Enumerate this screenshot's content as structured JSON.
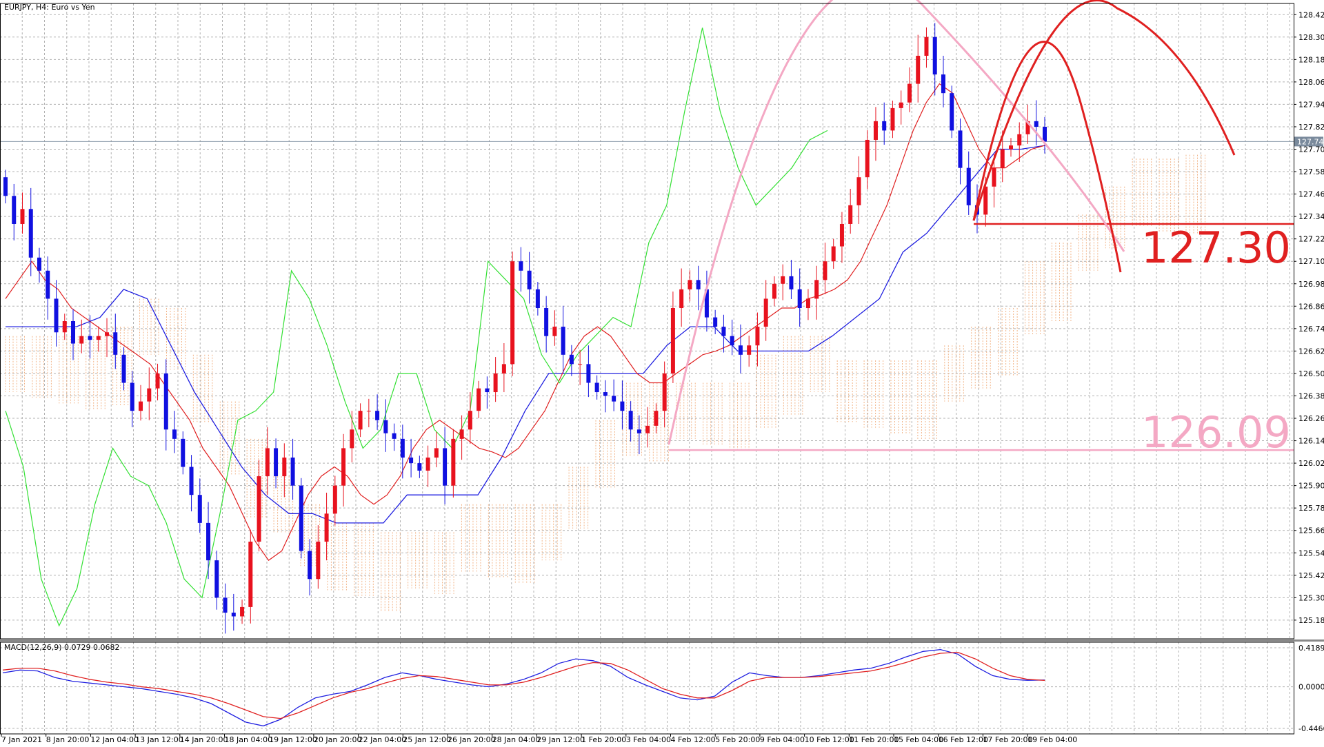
{
  "chart_data": {
    "type": "candlestick",
    "title": "EURJPY, H4:  Euro vs Yen",
    "price_axis": {
      "ylim": [
        125.08,
        128.48
      ],
      "ticks": [
        "128.420",
        "128.300",
        "128.180",
        "128.060",
        "127.940",
        "127.820",
        "127.700",
        "127.580",
        "127.460",
        "127.340",
        "127.220",
        "127.100",
        "126.980",
        "126.860",
        "126.740",
        "126.620",
        "126.500",
        "126.380",
        "126.260",
        "126.140",
        "126.020",
        "125.900",
        "125.780",
        "125.660",
        "125.540",
        "125.420",
        "125.300",
        "125.180"
      ],
      "current_price_label": "127.741",
      "current_price": 127.741
    },
    "time_axis": {
      "labels": [
        "7 Jan 2021",
        "8 Jan 20:00",
        "12 Jan 04:00",
        "13 Jan 12:00",
        "14 Jan 20:00",
        "18 Jan 04:00",
        "19 Jan 12:00",
        "20 Jan 20:00",
        "22 Jan 04:00",
        "25 Jan 12:00",
        "26 Jan 20:00",
        "28 Jan 04:00",
        "29 Jan 12:00",
        "1 Feb 20:00",
        "3 Feb 04:00",
        "4 Feb 12:00",
        "5 Feb 20:00",
        "9 Feb 04:00",
        "10 Feb 12:00",
        "11 Feb 20:00",
        "15 Feb 04:00",
        "16 Feb 12:00",
        "17 Feb 20:00",
        "19 Feb 04:00"
      ]
    },
    "candles_close": [
      127.45,
      127.3,
      127.38,
      127.12,
      127.05,
      126.9,
      126.72,
      126.78,
      126.66,
      126.7,
      126.68,
      126.7,
      126.72,
      126.6,
      126.45,
      126.3,
      126.35,
      126.42,
      126.5,
      126.2,
      126.15,
      126.0,
      125.85,
      125.7,
      125.5,
      125.3,
      125.22,
      125.2,
      125.25,
      125.6,
      125.95,
      126.1,
      125.95,
      126.05,
      125.9,
      125.55,
      125.4,
      125.6,
      125.75,
      125.9,
      126.1,
      126.2,
      126.3,
      126.3,
      126.25,
      126.18,
      126.15,
      126.05,
      126.02,
      125.98,
      126.05,
      126.1,
      125.9,
      126.15,
      126.2,
      126.3,
      126.42,
      126.4,
      126.5,
      126.55,
      127.1,
      127.05,
      126.95,
      126.85,
      126.7,
      126.75,
      126.6,
      126.55,
      126.55,
      126.45,
      126.4,
      126.38,
      126.35,
      126.3,
      126.2,
      126.18,
      126.22,
      126.3,
      126.5,
      126.85,
      126.95,
      127.0,
      126.95,
      126.8,
      126.75,
      126.7,
      126.65,
      126.6,
      126.65,
      126.75,
      126.9,
      126.98,
      127.02,
      126.95,
      126.85,
      126.9,
      127.0,
      127.1,
      127.18,
      127.3,
      127.4,
      127.55,
      127.75,
      127.85,
      127.8,
      127.92,
      127.95,
      128.05,
      128.2,
      128.3,
      128.1,
      128.0,
      127.8,
      127.6,
      127.4,
      127.35,
      127.5,
      127.6,
      127.7,
      127.72,
      127.78,
      127.85,
      127.82,
      127.741
    ],
    "tenkan": [
      126.9,
      127.0,
      127.1,
      127.0,
      126.95,
      126.85,
      126.8,
      126.75,
      126.7,
      126.65,
      126.6,
      126.55,
      126.45,
      126.35,
      126.25,
      126.1,
      126.0,
      125.9,
      125.75,
      125.6,
      125.5,
      125.55,
      125.7,
      125.85,
      125.95,
      126.0,
      125.95,
      125.85,
      125.8,
      125.85,
      125.95,
      126.1,
      126.2,
      126.25,
      126.2,
      126.15,
      126.1,
      126.08,
      126.05,
      126.1,
      126.2,
      126.3,
      126.45,
      126.6,
      126.7,
      126.75,
      126.7,
      126.6,
      126.5,
      126.45,
      126.45,
      126.5,
      126.55,
      126.6,
      126.62,
      126.65,
      126.7,
      126.75,
      126.8,
      126.85,
      126.85,
      126.9,
      126.92,
      126.95,
      127.0,
      127.1,
      127.25,
      127.4,
      127.6,
      127.8,
      127.95,
      128.05,
      128.0,
      127.85,
      127.7,
      127.6,
      127.6,
      127.65,
      127.7,
      127.72
    ],
    "kijun": [
      126.75,
      126.75,
      126.75,
      126.75,
      126.8,
      126.95,
      126.9,
      126.65,
      126.4,
      126.2,
      126.0,
      125.85,
      125.75,
      125.75,
      125.7,
      125.7,
      125.7,
      125.85,
      125.85,
      125.85,
      125.85,
      126.05,
      126.3,
      126.5,
      126.5,
      126.5,
      126.5,
      126.5,
      126.65,
      126.75,
      126.75,
      126.62,
      126.62,
      126.62,
      126.62,
      126.7,
      126.8,
      126.9,
      127.15,
      127.25,
      127.4,
      127.55,
      127.7,
      127.7,
      127.72
    ],
    "chikou": [
      126.3,
      126.0,
      125.4,
      125.15,
      125.35,
      125.8,
      126.1,
      125.95,
      125.9,
      125.7,
      125.4,
      125.3,
      125.75,
      126.25,
      126.3,
      126.4,
      127.05,
      126.9,
      126.65,
      126.35,
      126.1,
      126.2,
      126.5,
      126.5,
      126.2,
      126.1,
      126.3,
      127.1,
      127.0,
      126.9,
      126.6,
      126.45,
      126.6,
      126.7,
      126.8,
      126.75,
      127.2,
      127.4,
      127.9,
      128.35,
      127.9,
      127.6,
      127.4,
      127.5,
      127.6,
      127.75,
      127.8
    ],
    "cloud_note": "Ichimoku Kumo",
    "levels": [
      {
        "label": "127.30",
        "value": 127.3,
        "color": "#e02020"
      },
      {
        "label": "126.09",
        "value": 126.09,
        "color": "#f4a8c4"
      }
    ],
    "macd": {
      "label": "MACD(12,26,9) 0.0729 0.0682",
      "ylim": [
        -0.4466,
        0.4189
      ],
      "ticks": [
        "0.4189",
        "0.0000",
        "-0.4466"
      ],
      "main": [
        0.15,
        0.18,
        0.17,
        0.1,
        0.06,
        0.04,
        0.02,
        0.0,
        -0.02,
        -0.05,
        -0.08,
        -0.12,
        -0.18,
        -0.28,
        -0.38,
        -0.42,
        -0.35,
        -0.22,
        -0.12,
        -0.08,
        -0.05,
        0.02,
        0.1,
        0.15,
        0.12,
        0.08,
        0.05,
        0.02,
        0.0,
        0.03,
        0.08,
        0.15,
        0.25,
        0.3,
        0.28,
        0.22,
        0.1,
        0.02,
        -0.05,
        -0.12,
        -0.14,
        -0.1,
        0.05,
        0.15,
        0.12,
        0.1,
        0.1,
        0.12,
        0.15,
        0.18,
        0.2,
        0.25,
        0.32,
        0.38,
        0.4,
        0.35,
        0.22,
        0.12,
        0.08,
        0.07,
        0.073
      ],
      "signal": [
        0.18,
        0.2,
        0.2,
        0.17,
        0.12,
        0.08,
        0.05,
        0.03,
        0.0,
        -0.02,
        -0.05,
        -0.08,
        -0.12,
        -0.18,
        -0.25,
        -0.32,
        -0.34,
        -0.28,
        -0.2,
        -0.12,
        -0.06,
        -0.02,
        0.04,
        0.09,
        0.12,
        0.11,
        0.08,
        0.05,
        0.02,
        0.02,
        0.05,
        0.1,
        0.16,
        0.22,
        0.26,
        0.25,
        0.18,
        0.08,
        -0.02,
        -0.08,
        -0.12,
        -0.12,
        -0.04,
        0.06,
        0.1,
        0.1,
        0.1,
        0.11,
        0.13,
        0.15,
        0.17,
        0.21,
        0.26,
        0.32,
        0.36,
        0.37,
        0.3,
        0.2,
        0.12,
        0.08,
        0.068
      ]
    }
  }
}
